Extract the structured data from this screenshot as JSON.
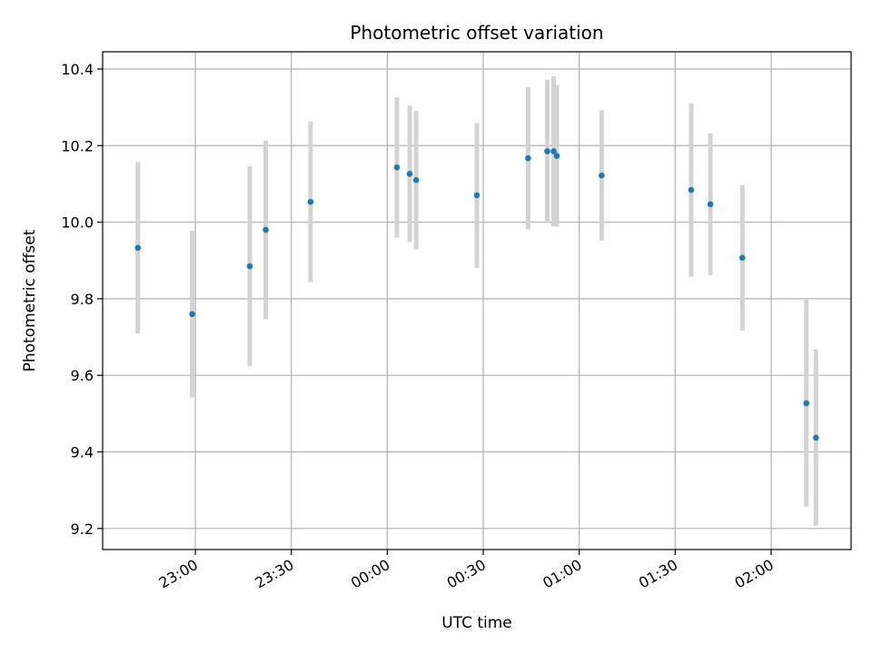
{
  "chart_data": {
    "type": "scatter",
    "title": "Photometric offset variation",
    "xlabel": "UTC time",
    "ylabel": "Photometric offset",
    "x_axis_type": "time",
    "xlim": [
      "22:31",
      "02:25"
    ],
    "ylim": [
      9.145,
      10.445
    ],
    "x_ticks": [
      "23:00",
      "23:30",
      "00:00",
      "00:30",
      "01:00",
      "01:30",
      "02:00"
    ],
    "y_ticks": [
      "9.2",
      "9.4",
      "9.6",
      "9.8",
      "10.0",
      "10.2",
      "10.4"
    ],
    "y_tick_values": [
      9.2,
      9.4,
      9.6,
      9.8,
      10.0,
      10.2,
      10.4
    ],
    "grid": true,
    "marker_color": "#1f77b4",
    "errorbar_color": "#d3d3d3",
    "points": [
      {
        "time": "22:42",
        "y": 9.933,
        "err": 0.224
      },
      {
        "time": "22:59",
        "y": 9.76,
        "err": 0.218
      },
      {
        "time": "23:17",
        "y": 9.885,
        "err": 0.261
      },
      {
        "time": "23:22",
        "y": 9.98,
        "err": 0.233
      },
      {
        "time": "23:36",
        "y": 10.053,
        "err": 0.21
      },
      {
        "time": "00:03",
        "y": 10.143,
        "err": 0.183
      },
      {
        "time": "00:07",
        "y": 10.126,
        "err": 0.178
      },
      {
        "time": "00:09",
        "y": 10.11,
        "err": 0.181
      },
      {
        "time": "00:28",
        "y": 10.07,
        "err": 0.189
      },
      {
        "time": "00:44",
        "y": 10.167,
        "err": 0.186
      },
      {
        "time": "00:50",
        "y": 10.185,
        "err": 0.187
      },
      {
        "time": "00:52",
        "y": 10.185,
        "err": 0.196
      },
      {
        "time": "00:53",
        "y": 10.173,
        "err": 0.185
      },
      {
        "time": "01:07",
        "y": 10.122,
        "err": 0.17
      },
      {
        "time": "01:35",
        "y": 10.084,
        "err": 0.226
      },
      {
        "time": "01:41",
        "y": 10.047,
        "err": 0.185
      },
      {
        "time": "01:51",
        "y": 9.907,
        "err": 0.19
      },
      {
        "time": "02:11",
        "y": 9.527,
        "err": 0.27
      },
      {
        "time": "02:14",
        "y": 9.437,
        "err": 0.23
      }
    ]
  }
}
